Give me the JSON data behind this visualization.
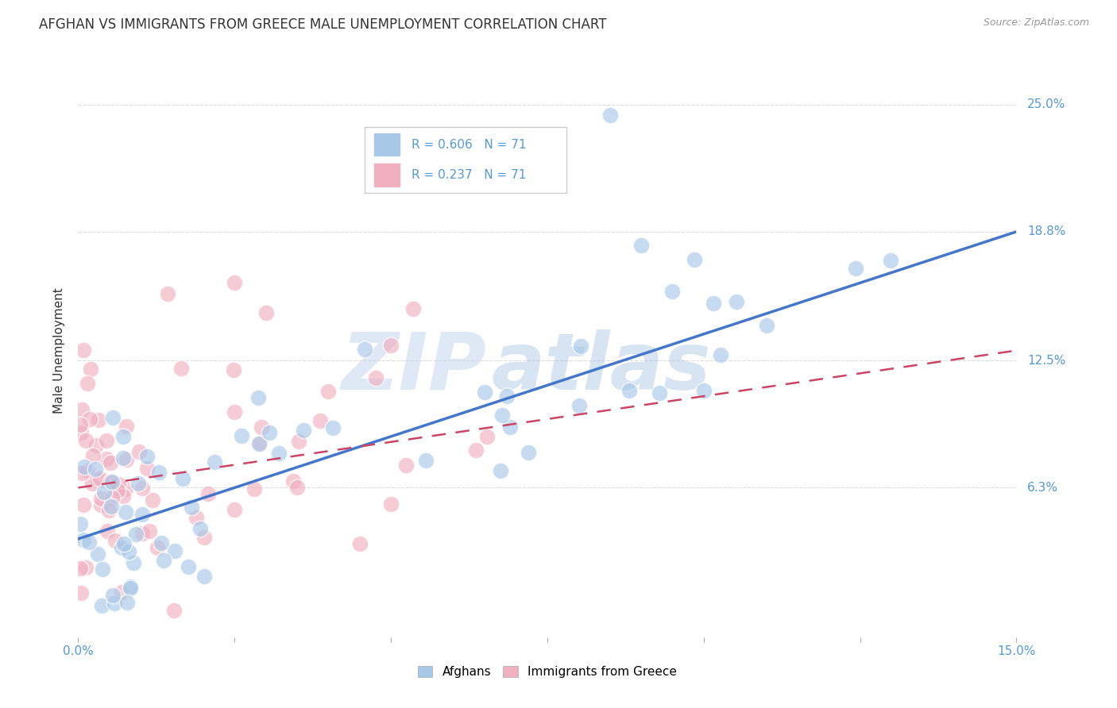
{
  "title": "AFGHAN VS IMMIGRANTS FROM GREECE MALE UNEMPLOYMENT CORRELATION CHART",
  "source": "Source: ZipAtlas.com",
  "ylabel": "Male Unemployment",
  "xlim": [
    0.0,
    0.15
  ],
  "ylim": [
    -0.01,
    0.27
  ],
  "yticks": [
    0.063,
    0.125,
    0.188,
    0.25
  ],
  "ytick_labels": [
    "6.3%",
    "12.5%",
    "18.8%",
    "25.0%"
  ],
  "xticks": [
    0.0,
    0.025,
    0.05,
    0.075,
    0.1,
    0.125,
    0.15
  ],
  "xtick_labels": [
    "0.0%",
    "",
    "",
    "",
    "",
    "",
    "15.0%"
  ],
  "legend_r1": "0.606",
  "legend_n1": "71",
  "legend_r2": "0.237",
  "legend_n2": "71",
  "color_afghan": "#a8c8e8",
  "color_greece": "#f0b0c0",
  "color_line_afghan": "#4477cc",
  "color_line_greece": "#cc4466",
  "watermark_zip": "ZIP",
  "watermark_atlas": "atlas",
  "background_color": "#ffffff",
  "grid_color": "#dddddd",
  "title_fontsize": 12,
  "label_fontsize": 11,
  "tick_fontsize": 11,
  "tick_color": "#5599dd",
  "afghan_line_x": [
    0.0,
    0.15
  ],
  "afghan_line_y": [
    0.038,
    0.188
  ],
  "greece_line_x": [
    0.0,
    0.15
  ],
  "greece_line_y": [
    0.063,
    0.13
  ],
  "bottom_legend_labels": [
    "Afghans",
    "Immigrants from Greece"
  ]
}
